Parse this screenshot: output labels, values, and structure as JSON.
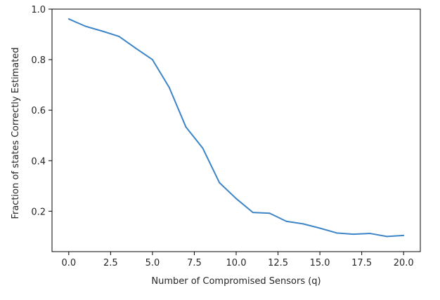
{
  "chart_data": {
    "type": "line",
    "title": "",
    "xlabel": "Number of Compromised Sensors (q)",
    "ylabel": "Fraction of states Correctly Estimated",
    "xlim": [
      -1,
      21
    ],
    "ylim": [
      0.04,
      1.0
    ],
    "x_ticks": [
      0.0,
      2.5,
      5.0,
      7.5,
      10.0,
      12.5,
      15.0,
      17.5,
      20.0
    ],
    "x_tick_labels": [
      "0.0",
      "2.5",
      "5.0",
      "7.5",
      "10.0",
      "12.5",
      "15.0",
      "17.5",
      "20.0"
    ],
    "y_ticks": [
      0.2,
      0.4,
      0.6,
      0.8,
      1.0
    ],
    "y_tick_labels": [
      "0.2",
      "0.4",
      "0.6",
      "0.8",
      "1.0"
    ],
    "grid": false,
    "series": [
      {
        "color": "#3d85c6",
        "x": [
          0,
          1,
          2,
          3,
          4,
          5,
          6,
          7,
          8,
          9,
          10,
          11,
          12,
          13,
          14,
          15,
          16,
          17,
          18,
          19,
          20
        ],
        "y": [
          0.961,
          0.932,
          0.913,
          0.892,
          0.845,
          0.8,
          0.69,
          0.533,
          0.45,
          0.313,
          0.25,
          0.195,
          0.192,
          0.16,
          0.15,
          0.133,
          0.114,
          0.109,
          0.112,
          0.1,
          0.104
        ]
      }
    ]
  }
}
